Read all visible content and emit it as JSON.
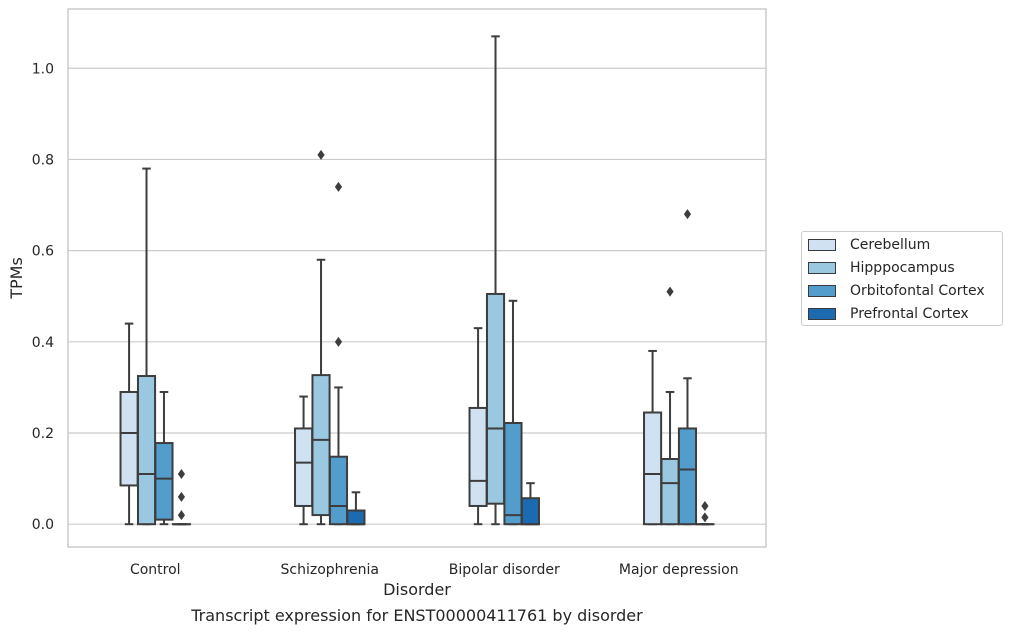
{
  "caption": "Transcript expression for ENST00000411761 by disorder",
  "chart_data": {
    "type": "box",
    "xlabel": "Disorder",
    "ylabel": "TPMs",
    "ylim": [
      -0.05,
      1.13
    ],
    "yticks": [
      0.0,
      0.2,
      0.4,
      0.6,
      0.8,
      1.0
    ],
    "ytick_labels": [
      "0.0",
      "0.2",
      "0.4",
      "0.6",
      "0.8",
      "1.0"
    ],
    "grid": "horizontal",
    "legend_position": "right",
    "categories": [
      "Control",
      "Schizophrenia",
      "Bipolar disorder",
      "Major depression"
    ],
    "series": [
      {
        "name": "Cerebellum",
        "color": "#d0e1f2",
        "boxes": [
          {
            "whislo": 0.0,
            "q1": 0.085,
            "med": 0.2,
            "q3": 0.29,
            "whishi": 0.44,
            "fliers": []
          },
          {
            "whislo": 0.0,
            "q1": 0.04,
            "med": 0.135,
            "q3": 0.21,
            "whishi": 0.28,
            "fliers": []
          },
          {
            "whislo": 0.0,
            "q1": 0.04,
            "med": 0.095,
            "q3": 0.255,
            "whishi": 0.43,
            "fliers": []
          },
          {
            "whislo": 0.0,
            "q1": 0.0,
            "med": 0.11,
            "q3": 0.245,
            "whishi": 0.38,
            "fliers": []
          }
        ]
      },
      {
        "name": "Hipppocampus",
        "color": "#9ac8e0",
        "boxes": [
          {
            "whislo": 0.0,
            "q1": 0.0,
            "med": 0.11,
            "q3": 0.325,
            "whishi": 0.78,
            "fliers": []
          },
          {
            "whislo": 0.0,
            "q1": 0.02,
            "med": 0.185,
            "q3": 0.327,
            "whishi": 0.58,
            "fliers": [
              0.81
            ]
          },
          {
            "whislo": 0.0,
            "q1": 0.045,
            "med": 0.21,
            "q3": 0.505,
            "whishi": 1.07,
            "fliers": []
          },
          {
            "whislo": 0.0,
            "q1": 0.0,
            "med": 0.09,
            "q3": 0.143,
            "whishi": 0.29,
            "fliers": [
              0.51
            ]
          }
        ]
      },
      {
        "name": "Orbitofontal Cortex",
        "color": "#529dcc",
        "boxes": [
          {
            "whislo": 0.0,
            "q1": 0.01,
            "med": 0.1,
            "q3": 0.178,
            "whishi": 0.29,
            "fliers": []
          },
          {
            "whislo": 0.0,
            "q1": 0.0,
            "med": 0.04,
            "q3": 0.148,
            "whishi": 0.3,
            "fliers": [
              0.74,
              0.4
            ]
          },
          {
            "whislo": 0.0,
            "q1": 0.0,
            "med": 0.02,
            "q3": 0.222,
            "whishi": 0.49,
            "fliers": []
          },
          {
            "whislo": 0.0,
            "q1": 0.0,
            "med": 0.12,
            "q3": 0.21,
            "whishi": 0.32,
            "fliers": [
              0.68
            ]
          }
        ]
      },
      {
        "name": "Prefrontal Cortex",
        "color": "#1c6aaf",
        "boxes": [
          {
            "whislo": 0.0,
            "q1": 0.0,
            "med": 0.0,
            "q3": 0.0,
            "whishi": 0.0,
            "fliers": [
              0.11,
              0.06,
              0.02
            ]
          },
          {
            "whislo": 0.0,
            "q1": 0.0,
            "med": 0.0,
            "q3": 0.03,
            "whishi": 0.07,
            "fliers": []
          },
          {
            "whislo": 0.0,
            "q1": 0.0,
            "med": 0.0,
            "q3": 0.057,
            "whishi": 0.09,
            "fliers": []
          },
          {
            "whislo": 0.0,
            "q1": 0.0,
            "med": 0.0,
            "q3": 0.0,
            "whishi": 0.0,
            "fliers": [
              0.04,
              0.015
            ]
          }
        ]
      }
    ]
  }
}
